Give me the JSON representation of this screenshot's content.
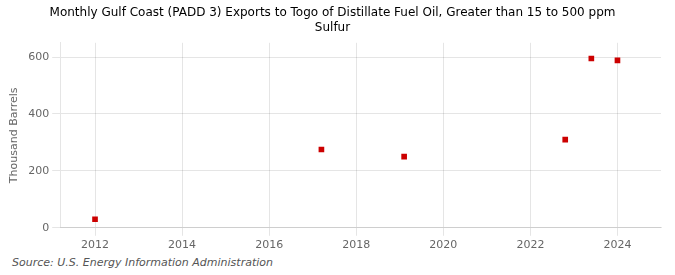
{
  "chart_data": {
    "type": "scatter",
    "title": "Monthly Gulf Coast (PADD 3) Exports to Togo of Distillate Fuel Oil, Greater than 15 to 500 ppm\nSulfur",
    "ylabel": "Thousand Barrels",
    "annotation": "Source: U.S. Energy Information Administration",
    "x": [
      2012.0,
      2017.2,
      2019.1,
      2022.8,
      2023.4,
      2024.0
    ],
    "values": [
      30,
      275,
      250,
      310,
      595,
      588
    ],
    "color": "#cc0000",
    "marker": "square",
    "xlim": [
      2011.2,
      2025.0
    ],
    "ylim": [
      0,
      650
    ],
    "xticks": [
      2012,
      2014,
      2016,
      2018,
      2020,
      2022,
      2024
    ],
    "yticks": [
      0,
      200,
      400,
      600
    ],
    "grid": true
  }
}
